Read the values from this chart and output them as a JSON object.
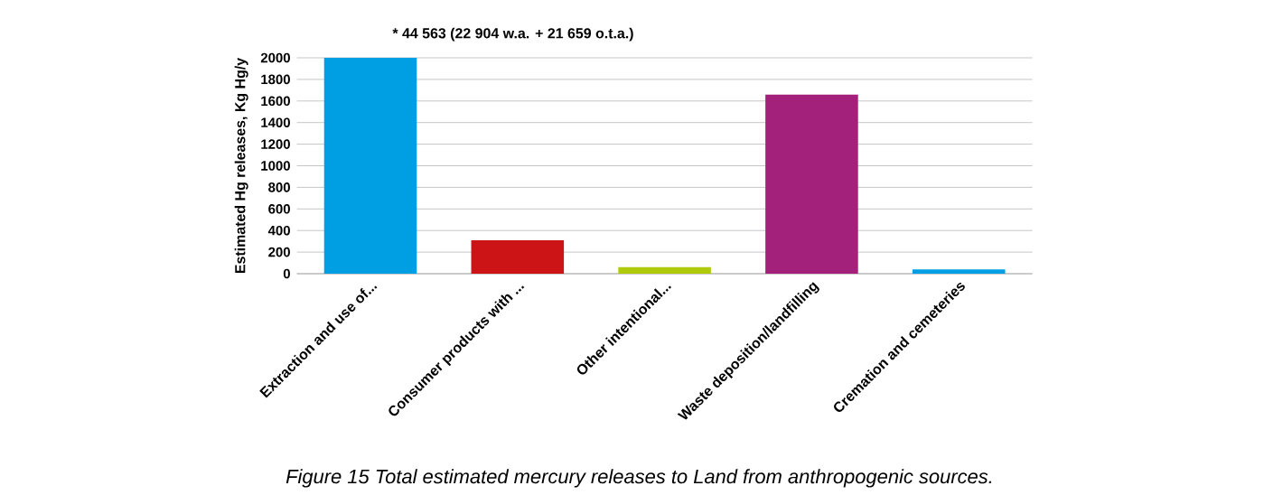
{
  "chart_data": {
    "type": "bar",
    "ylabel": "Estimated Hg releases, Kg Hg/y",
    "categories": [
      "Extraction and use of...",
      "Consumer products with ...",
      "Other intentional...",
      "Waste deposition/landfilling",
      "Cremation and cemeteries"
    ],
    "values": [
      2000,
      310,
      60,
      1660,
      40
    ],
    "colors": [
      "#009fe3",
      "#cc1417",
      "#afca0b",
      "#a3217a",
      "#009fe3"
    ],
    "ylim": [
      0,
      2000
    ],
    "yticks": [
      0,
      200,
      400,
      600,
      800,
      1000,
      1200,
      1400,
      1600,
      1800,
      2000
    ],
    "grid": "y",
    "annotations": [
      "* 44 563 (22 904 w.a. + 21 659 o.t.a.)",
      "Figure 15 Total estimated mercury releases to Land from anthropogenic sources."
    ]
  }
}
